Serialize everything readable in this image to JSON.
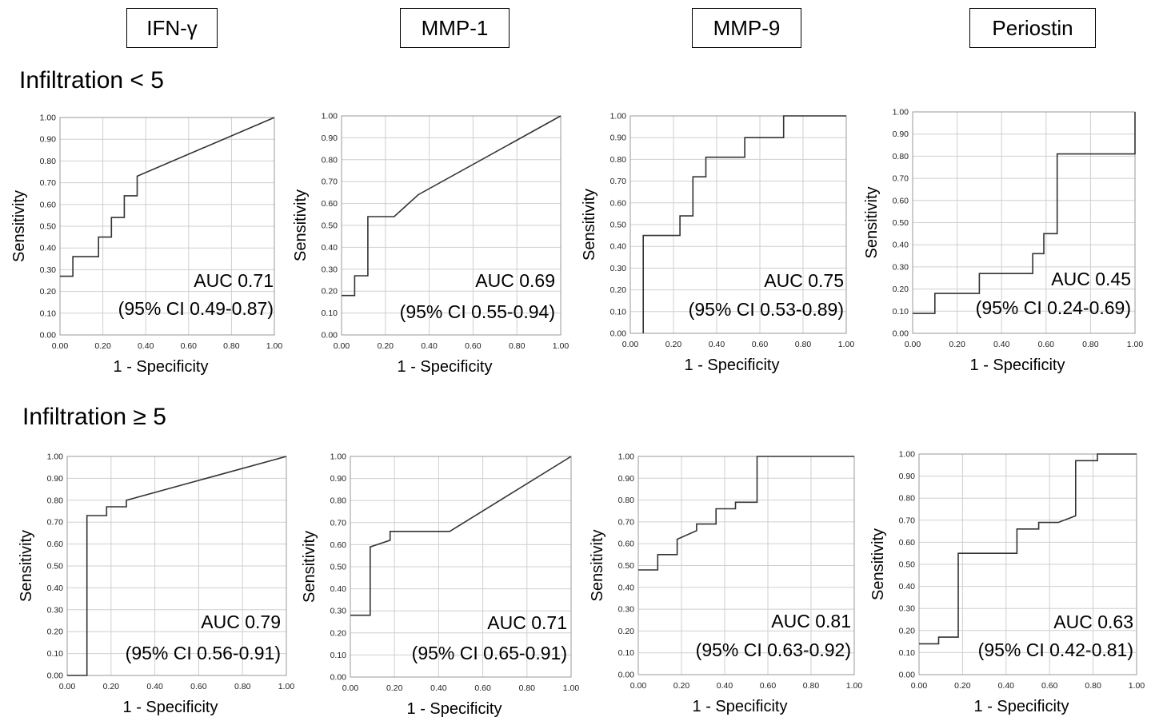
{
  "columns": [
    "IFN-γ",
    "MMP-1",
    "MMP-9",
    "Periostin"
  ],
  "rows": [
    "Infiltration < 5",
    "Infiltration ≥ 5"
  ],
  "axis": {
    "xlabel": "1 - Specificity",
    "ylabel": "Sensitivity",
    "ticks": [
      "0.00",
      "0.10",
      "0.20",
      "0.30",
      "0.40",
      "0.50",
      "0.60",
      "0.70",
      "0.80",
      "0.90",
      "1.00"
    ],
    "xticks": [
      "0.00",
      "0.20",
      "0.40",
      "0.60",
      "0.80",
      "1.00"
    ]
  },
  "colors": {
    "line": "#333333",
    "grid": "#cfcfcf",
    "frame": "#999999"
  },
  "chart_data": [
    {
      "type": "line",
      "row": "Infiltration < 5",
      "column": "IFN-γ",
      "auc_label": "AUC 0.71",
      "ci_label": "(95% CI 0.49-0.87)",
      "xlim": [
        0,
        1
      ],
      "ylim": [
        0,
        1
      ],
      "x": [
        0,
        0,
        0.06,
        0.06,
        0.18,
        0.18,
        0.24,
        0.24,
        0.3,
        0.3,
        0.36,
        0.36,
        1.0
      ],
      "y": [
        0.27,
        0.27,
        0.27,
        0.36,
        0.36,
        0.45,
        0.45,
        0.54,
        0.54,
        0.64,
        0.64,
        0.73,
        1.0
      ]
    },
    {
      "type": "line",
      "row": "Infiltration < 5",
      "column": "MMP-1",
      "auc_label": "AUC 0.69",
      "ci_label": "(95% CI 0.55-0.94)",
      "xlim": [
        0,
        1
      ],
      "ylim": [
        0,
        1
      ],
      "x": [
        0,
        0,
        0.06,
        0.06,
        0.12,
        0.12,
        0.24,
        0.35,
        1.0
      ],
      "y": [
        0.18,
        0.18,
        0.18,
        0.27,
        0.27,
        0.54,
        0.54,
        0.64,
        1.0
      ]
    },
    {
      "type": "line",
      "row": "Infiltration < 5",
      "column": "MMP-9",
      "auc_label": "AUC 0.75",
      "ci_label": "(95% CI 0.53-0.89)",
      "xlim": [
        0,
        1
      ],
      "ylim": [
        0,
        1
      ],
      "x": [
        0.06,
        0.06,
        0.23,
        0.23,
        0.29,
        0.29,
        0.35,
        0.35,
        0.53,
        0.53,
        0.71,
        0.71,
        1.0
      ],
      "y": [
        0,
        0.45,
        0.45,
        0.54,
        0.54,
        0.72,
        0.72,
        0.81,
        0.81,
        0.9,
        0.9,
        1.0,
        1.0
      ]
    },
    {
      "type": "line",
      "row": "Infiltration < 5",
      "column": "Periostin",
      "auc_label": "AUC 0.45",
      "ci_label": "(95% CI 0.24-0.69)",
      "xlim": [
        0,
        1
      ],
      "ylim": [
        0,
        1
      ],
      "x": [
        0,
        0,
        0.1,
        0.1,
        0.3,
        0.3,
        0.54,
        0.54,
        0.59,
        0.59,
        0.65,
        0.65,
        1.0,
        1.0
      ],
      "y": [
        0.09,
        0.09,
        0.09,
        0.18,
        0.18,
        0.27,
        0.27,
        0.36,
        0.36,
        0.45,
        0.45,
        0.81,
        0.81,
        1.0
      ]
    },
    {
      "type": "line",
      "row": "Infiltration ≥ 5",
      "column": "IFN-γ",
      "auc_label": "AUC 0.79",
      "ci_label": "(95% CI 0.56-0.91)",
      "xlim": [
        0,
        1
      ],
      "ylim": [
        0,
        1
      ],
      "x": [
        0,
        0.09,
        0.09,
        0.18,
        0.18,
        0.27,
        0.27,
        1.0
      ],
      "y": [
        0,
        0,
        0.73,
        0.73,
        0.77,
        0.77,
        0.8,
        1.0
      ]
    },
    {
      "type": "line",
      "row": "Infiltration ≥ 5",
      "column": "MMP-1",
      "auc_label": "AUC 0.71",
      "ci_label": "(95% CI 0.65-0.91)",
      "xlim": [
        0,
        1
      ],
      "ylim": [
        0,
        1
      ],
      "x": [
        0,
        0.09,
        0.09,
        0.18,
        0.18,
        0.45,
        1.0
      ],
      "y": [
        0.28,
        0.28,
        0.59,
        0.62,
        0.66,
        0.66,
        1.0
      ]
    },
    {
      "type": "line",
      "row": "Infiltration ≥ 5",
      "column": "MMP-9",
      "auc_label": "AUC 0.81",
      "ci_label": "(95% CI 0.63-0.92)",
      "xlim": [
        0,
        1
      ],
      "ylim": [
        0,
        1
      ],
      "x": [
        0,
        0.09,
        0.09,
        0.18,
        0.18,
        0.27,
        0.27,
        0.36,
        0.36,
        0.45,
        0.45,
        0.55,
        0.55,
        1.0
      ],
      "y": [
        0.48,
        0.48,
        0.55,
        0.55,
        0.62,
        0.66,
        0.69,
        0.69,
        0.76,
        0.76,
        0.79,
        0.79,
        1.0,
        1.0
      ]
    },
    {
      "type": "line",
      "row": "Infiltration ≥ 5",
      "column": "Periostin",
      "auc_label": "AUC 0.63",
      "ci_label": "(95% CI 0.42-0.81)",
      "xlim": [
        0,
        1
      ],
      "ylim": [
        0,
        1
      ],
      "x": [
        0,
        0.09,
        0.09,
        0.18,
        0.18,
        0.45,
        0.45,
        0.55,
        0.55,
        0.64,
        0.72,
        0.72,
        0.82,
        0.82,
        1.0
      ],
      "y": [
        0.14,
        0.14,
        0.17,
        0.17,
        0.55,
        0.55,
        0.66,
        0.66,
        0.69,
        0.69,
        0.72,
        0.97,
        0.97,
        1.0,
        1.0
      ]
    }
  ]
}
